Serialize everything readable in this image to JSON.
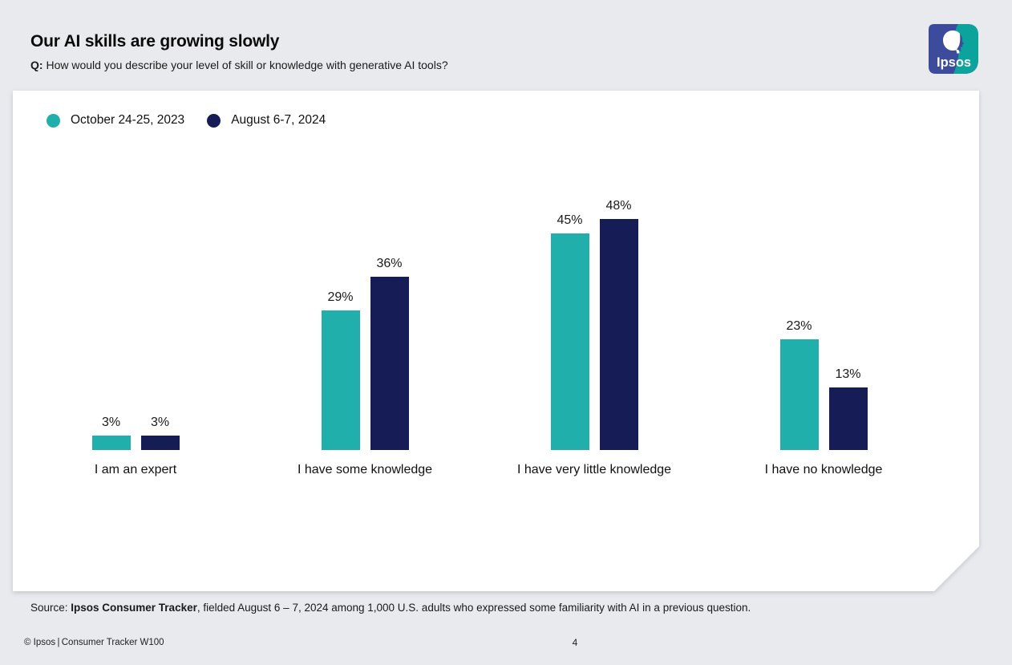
{
  "header": {
    "title": "Our AI skills are growing slowly",
    "question_prefix": "Q:",
    "question": " How would you describe your level of skill or knowledge with generative AI tools?"
  },
  "logo": {
    "brand": "Ipsos",
    "blue": "#3d4b9c",
    "teal": "#0ba39c"
  },
  "legend": [
    {
      "label": "October 24-25, 2023",
      "color": "#21afac"
    },
    {
      "label": "August 6-7, 2024",
      "color": "#161c55"
    }
  ],
  "chart_data": {
    "type": "bar",
    "categories": [
      "I am an expert",
      "I have some knowledge",
      "I have very little knowledge",
      "I have no knowledge"
    ],
    "series": [
      {
        "name": "October 24-25, 2023",
        "color": "#21afac",
        "values": [
          3,
          29,
          45,
          23
        ]
      },
      {
        "name": "August 6-7, 2024",
        "color": "#161c55",
        "values": [
          3,
          36,
          48,
          13
        ]
      }
    ],
    "value_suffix": "%",
    "title": "Our AI skills are growing slowly",
    "xlabel": "",
    "ylabel": "",
    "ylim": [
      0,
      50
    ],
    "grid": false,
    "legend_position": "top-left",
    "data_labels": true
  },
  "source": {
    "prefix": "Source: ",
    "bold": "Ipsos Consumer Tracker",
    "rest": ", fielded August 6 – 7, 2024 among 1,000 U.S. adults who expressed some familiarity with AI in a previous question."
  },
  "footer": {
    "left": "© Ipsos | Consumer Tracker W100",
    "page": "4"
  }
}
